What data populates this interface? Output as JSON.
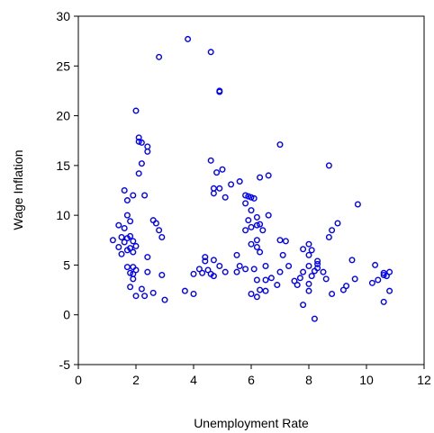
{
  "chart_data": {
    "type": "scatter",
    "xlabel": "Unemployment Rate",
    "ylabel": "Wage Inflation",
    "xlim": [
      0,
      12
    ],
    "ylim": [
      -5,
      30
    ],
    "xticks": [
      0,
      2,
      4,
      6,
      8,
      10,
      12
    ],
    "yticks": [
      -5,
      0,
      5,
      10,
      15,
      20,
      25,
      30
    ],
    "color": "#0000ff",
    "x": [
      3.8,
      4.6,
      2.8,
      4.9,
      4.9,
      2.0,
      2.1,
      2.1,
      2.2,
      7.0,
      2.4,
      2.4,
      4.6,
      2.2,
      8.7,
      5.0,
      4.8,
      2.1,
      6.6,
      6.3,
      5.6,
      5.3,
      4.7,
      4.9,
      1.6,
      4.7,
      2.3,
      1.9,
      5.8,
      5.9,
      6.0,
      6.1,
      5.1,
      1.7,
      9.7,
      5.8,
      6.0,
      6.6,
      1.7,
      6.2,
      2.6,
      1.8,
      5.9,
      6.3,
      2.7,
      9.0,
      1.4,
      1.6,
      6.0,
      5.8,
      8.8,
      6.4,
      2.8,
      1.5,
      1.7,
      1.8,
      2.9,
      1.2,
      7.0,
      7.2,
      1.6,
      1.9,
      6.0,
      6.2,
      8.7,
      8.0,
      2.0,
      1.4,
      1.8,
      7.8,
      6.2,
      1.7,
      1.9,
      6.3,
      8.1,
      1.5,
      8.0,
      5.5,
      7.1,
      4.4,
      4.4,
      4.7,
      9.5,
      2.4,
      8.3,
      8.3,
      5.6,
      6.5,
      7.3,
      10.3,
      8.0,
      8.3,
      4.9,
      1.7,
      1.9,
      4.2,
      4.5,
      5.5,
      4.3,
      5.8,
      6.1,
      7.0,
      7.8,
      8.5,
      10.6,
      10.8,
      2.0,
      1.8,
      4.6,
      5.1,
      8.2,
      1.9,
      2.4,
      4.7,
      10.7,
      10.6,
      2.9,
      6.7,
      7.7,
      8.1,
      9.6,
      10.4,
      1.9,
      6.2,
      6.5,
      8.6,
      10.2,
      7.6,
      8.0,
      6.9,
      9.3,
      1.8,
      2.2,
      6.3,
      6.5,
      2.6,
      8.0,
      9.2,
      10.8,
      3.7,
      4.0,
      6.0,
      2.0,
      6.2,
      2.3,
      7.8,
      10.6,
      3.0,
      8.2,
      8.8,
      7.5,
      4.0,
      6.2
    ],
    "values": [
      27.7,
      26.4,
      25.9,
      22.5,
      22.4,
      20.5,
      17.8,
      17.4,
      17.3,
      17.1,
      16.9,
      16.4,
      15.5,
      15.2,
      15.0,
      14.6,
      14.3,
      14.2,
      14.0,
      13.8,
      13.4,
      13.1,
      12.7,
      12.7,
      12.5,
      12.2,
      12.0,
      12.0,
      12.0,
      11.9,
      11.8,
      11.7,
      11.8,
      11.5,
      11.1,
      11.2,
      10.5,
      10.0,
      10.0,
      9.8,
      9.5,
      9.4,
      9.5,
      9.1,
      9.2,
      9.2,
      9.0,
      8.7,
      8.8,
      8.5,
      8.5,
      8.5,
      8.5,
      7.8,
      7.7,
      7.9,
      7.8,
      7.5,
      7.5,
      7.4,
      7.3,
      7.4,
      7.1,
      7.5,
      7.8,
      7.1,
      6.9,
      6.8,
      6.7,
      6.6,
      6.8,
      6.5,
      6.3,
      6.3,
      6.5,
      6.1,
      6.0,
      6.0,
      6.0,
      5.8,
      5.4,
      5.5,
      5.5,
      5.8,
      5.4,
      5.1,
      4.9,
      4.9,
      4.9,
      5.0,
      4.9,
      4.7,
      4.9,
      4.8,
      4.8,
      4.6,
      4.5,
      4.3,
      4.2,
      4.6,
      4.6,
      4.3,
      4.3,
      4.3,
      4.2,
      4.3,
      4.5,
      4.2,
      4.1,
      4.3,
      4.4,
      4.1,
      4.3,
      3.9,
      3.9,
      4.0,
      4.0,
      3.7,
      3.7,
      3.9,
      3.6,
      3.5,
      3.6,
      3.5,
      3.5,
      3.6,
      3.2,
      3.0,
      3.1,
      3.0,
      2.9,
      2.8,
      2.6,
      2.5,
      2.4,
      2.2,
      2.4,
      2.5,
      2.4,
      2.4,
      2.1,
      2.1,
      1.9,
      1.8,
      1.9,
      1.0,
      1.3,
      1.5,
      -0.4,
      2.1,
      3.4,
      4.1,
      9.0
    ]
  }
}
